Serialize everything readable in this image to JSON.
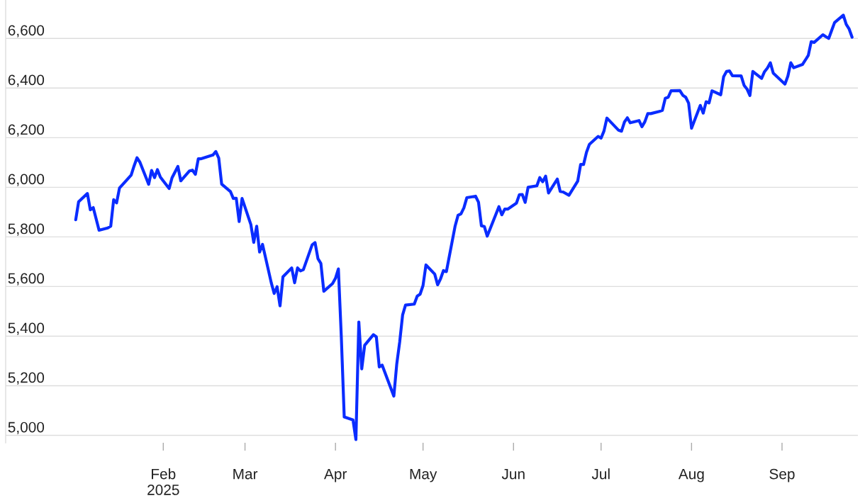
{
  "chart_data": {
    "type": "line",
    "xlim": [
      "2024-12-09",
      "2025-09-27"
    ],
    "ylim": [
      4970,
      6755
    ],
    "xticks": [
      {
        "value": "2025-02-01",
        "label": "Feb\n2025"
      },
      {
        "value": "2025-03-01",
        "label": "Mar"
      },
      {
        "value": "2025-04-01",
        "label": "Apr"
      },
      {
        "value": "2025-05-01",
        "label": "May"
      },
      {
        "value": "2025-06-01",
        "label": "Jun"
      },
      {
        "value": "2025-07-01",
        "label": "Jul"
      },
      {
        "value": "2025-08-01",
        "label": "Aug"
      },
      {
        "value": "2025-09-01",
        "label": "Sep"
      }
    ],
    "yticks": [
      {
        "value": 5000,
        "label": "5,000"
      },
      {
        "value": 5200,
        "label": "5,200"
      },
      {
        "value": 5400,
        "label": "5,400"
      },
      {
        "value": 5600,
        "label": "5,600"
      },
      {
        "value": 5800,
        "label": "5,800"
      },
      {
        "value": 6000,
        "label": "6,000"
      },
      {
        "value": 6200,
        "label": "6,200"
      },
      {
        "value": 6400,
        "label": "6,400"
      },
      {
        "value": 6600,
        "label": "6,600"
      }
    ],
    "grid": "y",
    "marker": "none",
    "line_style": "solid",
    "series": [
      {
        "color": "#0a2cff",
        "x": [
          "2025-01-02",
          "2025-01-03",
          "2025-01-06",
          "2025-01-07",
          "2025-01-08",
          "2025-01-10",
          "2025-01-13",
          "2025-01-14",
          "2025-01-15",
          "2025-01-16",
          "2025-01-17",
          "2025-01-21",
          "2025-01-22",
          "2025-01-23",
          "2025-01-24",
          "2025-01-27",
          "2025-01-28",
          "2025-01-29",
          "2025-01-30",
          "2025-01-31",
          "2025-02-03",
          "2025-02-04",
          "2025-02-05",
          "2025-02-06",
          "2025-02-07",
          "2025-02-10",
          "2025-02-11",
          "2025-02-12",
          "2025-02-13",
          "2025-02-14",
          "2025-02-18",
          "2025-02-19",
          "2025-02-20",
          "2025-02-21",
          "2025-02-24",
          "2025-02-25",
          "2025-02-26",
          "2025-02-27",
          "2025-02-28",
          "2025-03-03",
          "2025-03-04",
          "2025-03-05",
          "2025-03-06",
          "2025-03-07",
          "2025-03-10",
          "2025-03-11",
          "2025-03-12",
          "2025-03-13",
          "2025-03-14",
          "2025-03-17",
          "2025-03-18",
          "2025-03-19",
          "2025-03-20",
          "2025-03-21",
          "2025-03-24",
          "2025-03-25",
          "2025-03-26",
          "2025-03-27",
          "2025-03-28",
          "2025-03-31",
          "2025-04-01",
          "2025-04-02",
          "2025-04-03",
          "2025-04-04",
          "2025-04-07",
          "2025-04-08",
          "2025-04-09",
          "2025-04-10",
          "2025-04-11",
          "2025-04-14",
          "2025-04-15",
          "2025-04-16",
          "2025-04-17",
          "2025-04-21",
          "2025-04-22",
          "2025-04-23",
          "2025-04-24",
          "2025-04-25",
          "2025-04-28",
          "2025-04-29",
          "2025-04-30",
          "2025-05-01",
          "2025-05-02",
          "2025-05-05",
          "2025-05-06",
          "2025-05-07",
          "2025-05-08",
          "2025-05-09",
          "2025-05-12",
          "2025-05-13",
          "2025-05-14",
          "2025-05-15",
          "2025-05-16",
          "2025-05-19",
          "2025-05-20",
          "2025-05-21",
          "2025-05-22",
          "2025-05-23",
          "2025-05-27",
          "2025-05-28",
          "2025-05-29",
          "2025-05-30",
          "2025-06-02",
          "2025-06-03",
          "2025-06-04",
          "2025-06-05",
          "2025-06-06",
          "2025-06-09",
          "2025-06-10",
          "2025-06-11",
          "2025-06-12",
          "2025-06-13",
          "2025-06-16",
          "2025-06-17",
          "2025-06-18",
          "2025-06-20",
          "2025-06-23",
          "2025-06-24",
          "2025-06-25",
          "2025-06-26",
          "2025-06-27",
          "2025-06-30",
          "2025-07-01",
          "2025-07-02",
          "2025-07-03",
          "2025-07-07",
          "2025-07-08",
          "2025-07-09",
          "2025-07-10",
          "2025-07-11",
          "2025-07-14",
          "2025-07-15",
          "2025-07-16",
          "2025-07-17",
          "2025-07-18",
          "2025-07-21",
          "2025-07-22",
          "2025-07-23",
          "2025-07-24",
          "2025-07-25",
          "2025-07-28",
          "2025-07-29",
          "2025-07-30",
          "2025-07-31",
          "2025-08-01",
          "2025-08-04",
          "2025-08-05",
          "2025-08-06",
          "2025-08-07",
          "2025-08-08",
          "2025-08-11",
          "2025-08-12",
          "2025-08-13",
          "2025-08-14",
          "2025-08-15",
          "2025-08-18",
          "2025-08-19",
          "2025-08-20",
          "2025-08-21",
          "2025-08-22",
          "2025-08-25",
          "2025-08-26",
          "2025-08-27",
          "2025-08-28",
          "2025-08-29",
          "2025-09-02",
          "2025-09-03",
          "2025-09-04",
          "2025-09-05",
          "2025-09-08",
          "2025-09-09",
          "2025-09-10",
          "2025-09-11",
          "2025-09-12",
          "2025-09-15",
          "2025-09-16",
          "2025-09-17",
          "2025-09-18",
          "2025-09-19",
          "2025-09-22",
          "2025-09-23",
          "2025-09-24",
          "2025-09-25"
        ],
        "values": [
          5869,
          5942,
          5975,
          5909,
          5918,
          5827,
          5836,
          5843,
          5950,
          5937,
          5997,
          6049,
          6086,
          6119,
          6101,
          6012,
          6068,
          6039,
          6071,
          6041,
          5995,
          6038,
          6061,
          6084,
          6026,
          6066,
          6069,
          6052,
          6115,
          6115,
          6130,
          6144,
          6118,
          6013,
          5983,
          5955,
          5956,
          5862,
          5955,
          5850,
          5778,
          5843,
          5739,
          5770,
          5615,
          5572,
          5599,
          5522,
          5639,
          5675,
          5615,
          5675,
          5663,
          5668,
          5768,
          5777,
          5712,
          5693,
          5581,
          5612,
          5633,
          5671,
          5397,
          5074,
          5062,
          4983,
          5457,
          5268,
          5363,
          5406,
          5397,
          5276,
          5283,
          5158,
          5288,
          5376,
          5485,
          5525,
          5529,
          5561,
          5569,
          5604,
          5687,
          5650,
          5607,
          5631,
          5664,
          5660,
          5844,
          5887,
          5893,
          5917,
          5958,
          5964,
          5940,
          5845,
          5842,
          5803,
          5922,
          5889,
          5912,
          5912,
          5936,
          5970,
          5971,
          5939,
          6000,
          6006,
          6039,
          6022,
          6045,
          5977,
          6033,
          5983,
          5981,
          5968,
          6025,
          6092,
          6092,
          6141,
          6173,
          6205,
          6198,
          6227,
          6279,
          6230,
          6226,
          6263,
          6280,
          6260,
          6269,
          6244,
          6264,
          6297,
          6297,
          6306,
          6310,
          6359,
          6363,
          6389,
          6390,
          6371,
          6363,
          6339,
          6238,
          6330,
          6299,
          6345,
          6340,
          6389,
          6373,
          6446,
          6467,
          6469,
          6450,
          6449,
          6411,
          6396,
          6370,
          6467,
          6439,
          6466,
          6481,
          6502,
          6460,
          6416,
          6448,
          6502,
          6482,
          6495,
          6513,
          6532,
          6587,
          6584,
          6615,
          6607,
          6600,
          6632,
          6664,
          6694,
          6657,
          6638,
          6605
        ]
      }
    ]
  }
}
